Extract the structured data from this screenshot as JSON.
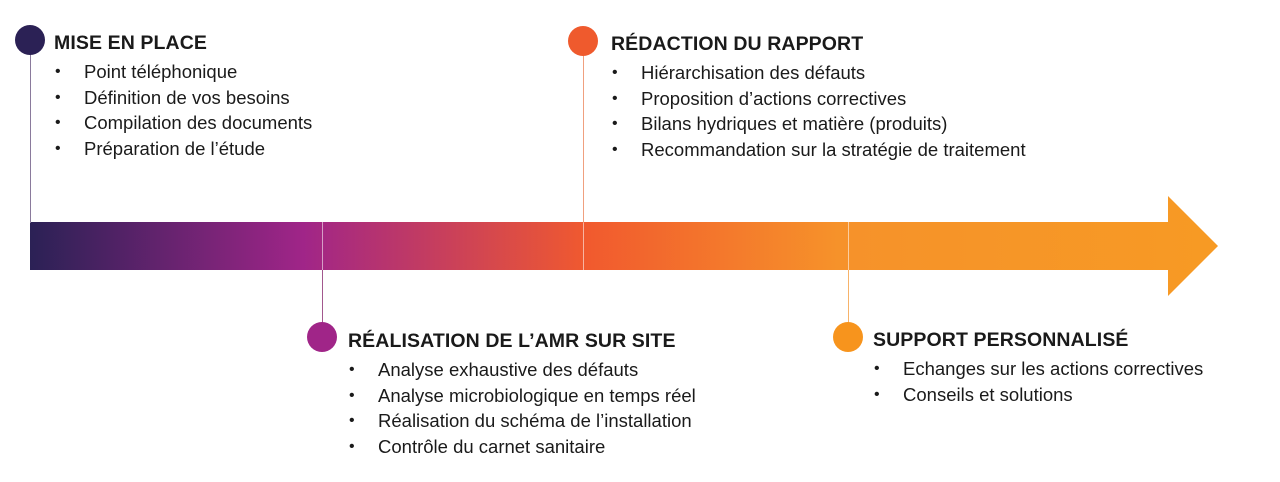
{
  "colors": {
    "gradient": [
      "#2b2155",
      "#a02588",
      "#f15a2e",
      "#f6922a",
      "#f79a24"
    ],
    "dot_step1": "#2b2155",
    "dot_step2": "#a02588",
    "dot_step3": "#ef5a2d",
    "dot_step4": "#f7941d"
  },
  "steps": [
    {
      "title": "MISE EN PLACE",
      "items": [
        "Point téléphonique",
        "Définition de vos besoins",
        "Compilation des documents",
        "Préparation de l’étude"
      ]
    },
    {
      "title": "RÉALISATION DE L’AMR SUR SITE",
      "items": [
        "Analyse exhaustive des défauts",
        "Analyse microbiologique en temps réel",
        "Réalisation du schéma de l’installation",
        "Contrôle du carnet sanitaire"
      ]
    },
    {
      "title": "RÉDACTION DU RAPPORT",
      "items": [
        "Hiérarchisation des défauts",
        "Proposition d’actions correctives",
        "Bilans hydriques et matière (produits)",
        "Recommandation sur la stratégie de traitement"
      ]
    },
    {
      "title": "SUPPORT PERSONNALISÉ",
      "items": [
        "Echanges sur les actions correctives",
        "Conseils et solutions"
      ]
    }
  ]
}
